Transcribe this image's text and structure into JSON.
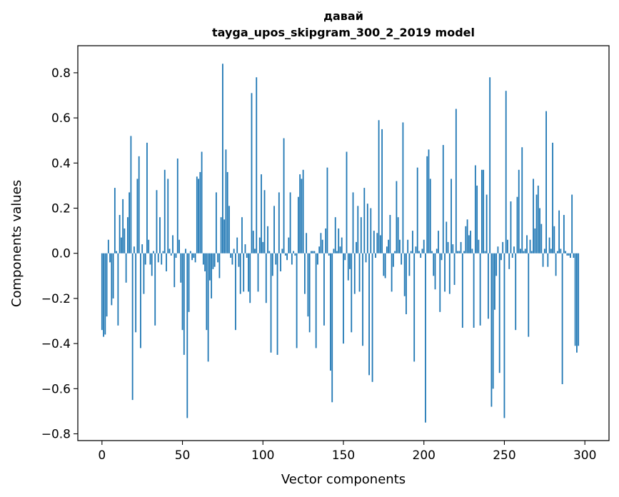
{
  "chart_data": {
    "type": "bar",
    "title": "давай",
    "subtitle": "tayga_upos_skipgram_300_2_2019 model",
    "xlabel": "Vector components",
    "ylabel": "Components values",
    "xlim": [
      -15,
      315
    ],
    "ylim": [
      -0.83,
      0.92
    ],
    "xticks": [
      0,
      50,
      100,
      150,
      200,
      250,
      300
    ],
    "yticks": [
      -0.8,
      -0.6,
      -0.4,
      -0.2,
      0.0,
      0.2,
      0.4,
      0.6,
      0.8
    ],
    "xtick_labels": [
      "0",
      "50",
      "100",
      "150",
      "200",
      "250",
      "300"
    ],
    "ytick_labels": [
      "−0.8",
      "−0.6",
      "−0.4",
      "−0.2",
      "0.0",
      "0.2",
      "0.4",
      "0.6",
      "0.8"
    ],
    "grid": false,
    "bar_color": "#1f77b4",
    "values": [
      -0.34,
      -0.37,
      -0.36,
      -0.28,
      0.06,
      -0.04,
      -0.23,
      -0.2,
      0.29,
      0.01,
      -0.32,
      0.17,
      0.07,
      0.24,
      0.11,
      -0.13,
      0.16,
      0.27,
      0.52,
      -0.65,
      0.03,
      -0.35,
      0.33,
      0.43,
      -0.42,
      0.04,
      -0.18,
      -0.05,
      0.49,
      0.06,
      -0.05,
      -0.1,
      0.01,
      -0.32,
      0.28,
      -0.04,
      0.16,
      -0.05,
      0.01,
      0.37,
      -0.08,
      0.33,
      0.02,
      -0.01,
      0.08,
      -0.15,
      -0.02,
      0.42,
      0.06,
      -0.13,
      -0.34,
      -0.45,
      0.02,
      -0.73,
      -0.26,
      0.01,
      -0.03,
      -0.02,
      -0.04,
      0.34,
      0.33,
      0.36,
      0.45,
      -0.05,
      -0.08,
      -0.34,
      -0.48,
      -0.12,
      -0.2,
      -0.07,
      -0.06,
      0.27,
      -0.04,
      -0.11,
      0.16,
      0.84,
      0.15,
      0.46,
      0.36,
      0.21,
      -0.02,
      -0.05,
      0.02,
      -0.34,
      0.07,
      -0.06,
      -0.18,
      0.16,
      -0.17,
      0.04,
      -0.02,
      -0.17,
      -0.22,
      0.71,
      0.1,
      0.02,
      0.78,
      -0.17,
      0.07,
      0.35,
      0.05,
      0.28,
      -0.22,
      0.12,
      0.01,
      -0.44,
      -0.1,
      0.21,
      -0.05,
      -0.45,
      0.27,
      -0.08,
      0.02,
      0.51,
      -0.01,
      -0.03,
      0.07,
      0.27,
      -0.05,
      0.01,
      -0.01,
      -0.42,
      0.25,
      0.35,
      0.33,
      0.37,
      -0.18,
      0.09,
      -0.28,
      -0.35,
      0.01,
      0.01,
      0.01,
      -0.42,
      -0.05,
      0.03,
      0.09,
      0.06,
      -0.32,
      0.11,
      0.38,
      -0.01,
      -0.52,
      -0.66,
      0.02,
      0.16,
      0.01,
      0.11,
      0.03,
      0.07,
      -0.4,
      -0.03,
      0.45,
      -0.12,
      -0.07,
      -0.35,
      0.27,
      -0.18,
      0.05,
      0.21,
      -0.17,
      0.16,
      -0.41,
      0.29,
      -0.04,
      0.22,
      -0.54,
      0.2,
      -0.57,
      0.1,
      -0.02,
      0.09,
      0.59,
      0.08,
      0.55,
      -0.1,
      -0.11,
      0.03,
      0.06,
      0.17,
      -0.17,
      -0.06,
      0.01,
      0.32,
      0.16,
      0.06,
      -0.05,
      0.58,
      -0.19,
      -0.27,
      0.06,
      -0.1,
      0.01,
      0.1,
      -0.48,
      0.03,
      0.38,
      0.01,
      -0.02,
      0.02,
      0.06,
      -0.75,
      0.43,
      0.46,
      0.33,
      0.01,
      -0.1,
      -0.16,
      0.02,
      0.1,
      -0.26,
      -0.03,
      0.48,
      -0.17,
      0.14,
      0.05,
      -0.18,
      0.33,
      0.04,
      -0.14,
      0.64,
      0.01,
      0.01,
      0.05,
      -0.33,
      0.01,
      0.12,
      0.15,
      0.08,
      0.1,
      0.02,
      -0.33,
      0.39,
      0.3,
      0.06,
      -0.32,
      0.37,
      0.37,
      0.01,
      0.26,
      -0.29,
      0.78,
      -0.68,
      -0.6,
      -0.25,
      -0.1,
      0.03,
      -0.53,
      -0.03,
      0.05,
      -0.73,
      0.72,
      0.06,
      -0.07,
      0.23,
      -0.02,
      0.03,
      -0.34,
      0.25,
      0.37,
      0.02,
      0.47,
      0.01,
      0.02,
      0.08,
      -0.37,
      0.06,
      0.01,
      0.33,
      0.11,
      0.26,
      0.3,
      0.2,
      0.13,
      -0.06,
      0.02,
      0.63,
      -0.06,
      0.07,
      0.02,
      0.49,
      0.12,
      -0.1,
      0.01,
      0.19,
      0.02,
      -0.58,
      0.17,
      0.01,
      -0.01,
      -0.01,
      -0.02,
      0.26,
      -0.02,
      -0.41,
      -0.44,
      -0.41
    ]
  }
}
